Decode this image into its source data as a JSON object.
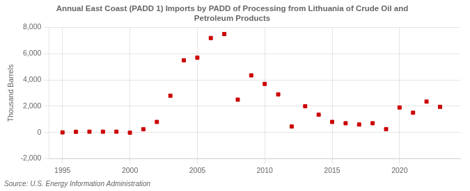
{
  "chart_data": {
    "type": "scatter",
    "title": "Annual East Coast (PADD 1) Imports by PADD of Processing from Lithuania of Crude Oil and\nPetroleum Products",
    "ylabel": "Thousand Barrels",
    "source": "Source: U.S. Energy Information Administration",
    "color": "#cc0000",
    "marker": "square",
    "grid": true,
    "x": [
      1995,
      1996,
      1997,
      1998,
      1999,
      2000,
      2001,
      2002,
      2003,
      2004,
      2005,
      2006,
      2007,
      2008,
      2009,
      2010,
      2011,
      2012,
      2013,
      2014,
      2015,
      2016,
      2017,
      2018,
      2019,
      2020,
      2021,
      2022,
      2023
    ],
    "values": [
      0,
      50,
      55,
      55,
      55,
      -20,
      240,
      800,
      2800,
      5500,
      5700,
      7200,
      7500,
      2500,
      4350,
      3700,
      2900,
      450,
      2000,
      1350,
      800,
      700,
      600,
      700,
      250,
      1900,
      1500,
      2350,
      1950
    ],
    "xlim": [
      1994,
      2024.5
    ],
    "xticks": [
      1995,
      2000,
      2005,
      2010,
      2015,
      2020
    ],
    "ylim": [
      -2000,
      8000
    ],
    "yticks": [
      {
        "value": -2000,
        "label": "-2,000"
      },
      0,
      {
        "value": 2000,
        "label": "2,000"
      },
      {
        "value": 4000,
        "label": "4,000"
      },
      {
        "value": 6000,
        "label": "6,000"
      },
      {
        "value": 8000,
        "label": "8,000"
      }
    ]
  }
}
